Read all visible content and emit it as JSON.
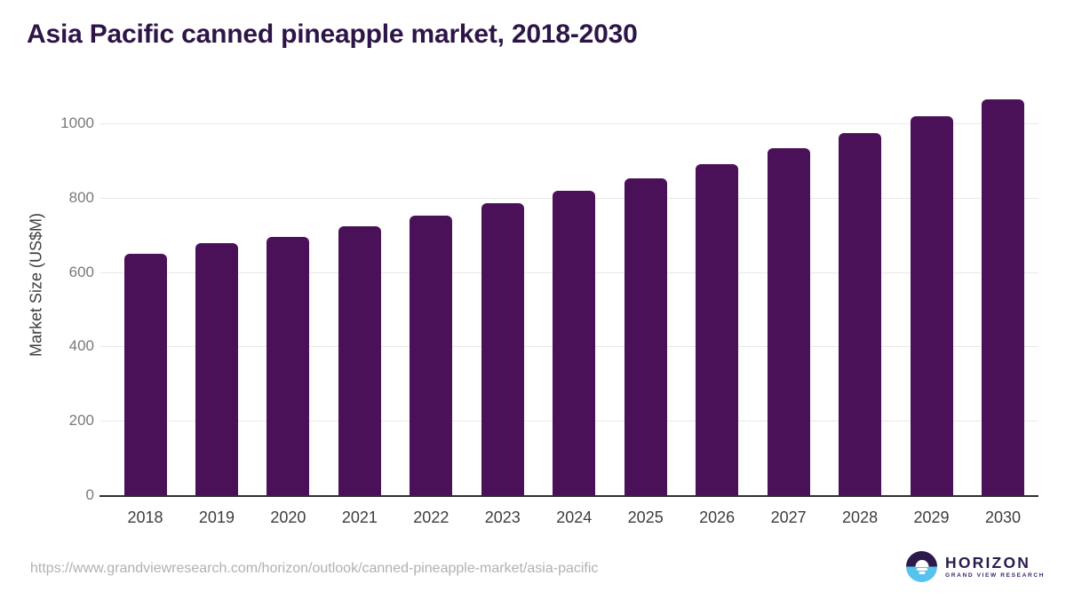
{
  "title": "Asia Pacific canned pineapple market, 2018-2030",
  "chart_data": {
    "type": "bar",
    "title": "Asia Pacific canned pineapple market, 2018-2030",
    "categories": [
      "2018",
      "2019",
      "2020",
      "2021",
      "2022",
      "2023",
      "2024",
      "2025",
      "2026",
      "2027",
      "2028",
      "2029",
      "2030"
    ],
    "values": [
      650,
      678,
      694,
      722,
      752,
      786,
      818,
      853,
      891,
      932,
      974,
      1018,
      1065
    ],
    "xlabel": "",
    "ylabel": "Market Size (US$M)",
    "yticks": [
      0,
      200,
      400,
      600,
      800,
      1000
    ],
    "ylim": [
      0,
      1100
    ],
    "grid": true,
    "legend_position": "none"
  },
  "colors": {
    "bar": "#4a1158",
    "title_text": "#2e1548",
    "axis_line": "#2e2e2e",
    "gridline": "#e8e8e8",
    "ytick_text": "#7a7a7a",
    "xtick_text": "#3d3d3d",
    "url_text": "#b1b1b1",
    "logo_purple": "#2b1a4a",
    "logo_blue": "#58c2ee"
  },
  "footer": {
    "source_url": "https://www.grandviewresearch.com/horizon/outlook/canned-pineapple-market/asia-pacific"
  },
  "logo": {
    "brand": "HORIZON",
    "tagline": "GRAND VIEW RESEARCH",
    "icon": "sun-over-horizon-icon"
  }
}
